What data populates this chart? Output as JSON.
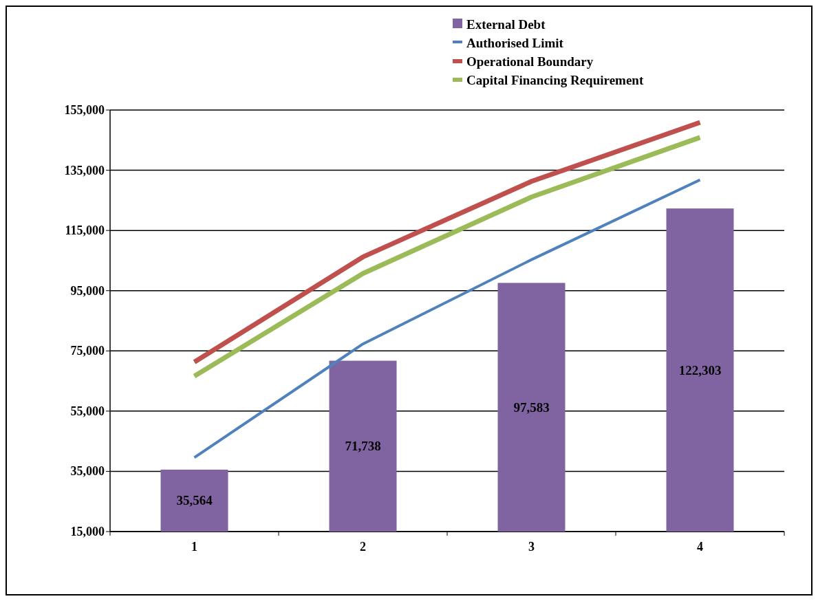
{
  "chart_data": {
    "type": "bar",
    "categories": [
      "1",
      "2",
      "3",
      "4"
    ],
    "series": [
      {
        "name": "External Debt",
        "color": "#8064a2",
        "values": [
          35564,
          71738,
          97583,
          122303
        ],
        "value_labels": [
          "35,564",
          "71,738",
          "97,583",
          "122,303"
        ]
      },
      {
        "name": "Authorised Limit",
        "type": "line",
        "color": "#4f81bd",
        "values": [
          39600,
          77300,
          105300,
          131800
        ]
      },
      {
        "name": "Operational Boundary",
        "type": "line",
        "color": "#c0504d",
        "values": [
          71300,
          106200,
          131300,
          150900
        ]
      },
      {
        "name": "Capital Financing Requirement",
        "type": "line",
        "color": "#9bbb59",
        "values": [
          66600,
          100700,
          126100,
          145900
        ]
      }
    ],
    "ylim": [
      15000,
      155000
    ],
    "yticks": [
      {
        "value": 15000,
        "label": "15,000"
      },
      {
        "value": 35000,
        "label": "35,000"
      },
      {
        "value": 55000,
        "label": "55,000"
      },
      {
        "value": 75000,
        "label": "75,000"
      },
      {
        "value": 95000,
        "label": "95,000"
      },
      {
        "value": 115000,
        "label": "115,000"
      },
      {
        "value": 135000,
        "label": "135,000"
      },
      {
        "value": 155000,
        "label": "155,000"
      }
    ],
    "grid": "y",
    "legend": "top"
  }
}
